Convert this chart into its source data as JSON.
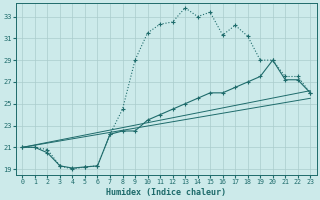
{
  "xlabel": "Humidex (Indice chaleur)",
  "xlim": [
    -0.5,
    23.5
  ],
  "ylim": [
    18.5,
    34.2
  ],
  "xticks": [
    0,
    1,
    2,
    3,
    4,
    5,
    6,
    7,
    8,
    9,
    10,
    11,
    12,
    13,
    14,
    15,
    16,
    17,
    18,
    19,
    20,
    21,
    22,
    23
  ],
  "yticks": [
    19,
    21,
    23,
    25,
    27,
    29,
    31,
    33
  ],
  "bg_color": "#cceaea",
  "line_color": "#1e6b6b",
  "grid_color": "#aacccc",
  "curve_main_x": [
    0,
    1,
    2,
    3,
    4,
    5,
    6,
    7,
    8,
    9,
    10,
    11,
    12,
    13,
    14,
    15,
    16,
    17,
    18,
    19,
    20,
    21,
    22,
    23
  ],
  "curve_main_y": [
    21.0,
    21.0,
    20.8,
    19.3,
    19.0,
    19.2,
    19.3,
    22.2,
    24.5,
    29.0,
    31.5,
    32.3,
    32.5,
    33.8,
    33.0,
    33.4,
    31.3,
    32.2,
    31.2,
    29.0,
    29.0,
    27.5,
    27.5,
    26.0
  ],
  "curve_mid_x": [
    0,
    1,
    2,
    3,
    4,
    5,
    6,
    7,
    8,
    9,
    10,
    11,
    12,
    13,
    14,
    15,
    16,
    17,
    18,
    19,
    20,
    21,
    22,
    23
  ],
  "curve_mid_y": [
    21.0,
    21.0,
    20.5,
    19.3,
    19.1,
    19.2,
    19.3,
    22.2,
    22.5,
    22.5,
    23.5,
    24.0,
    24.5,
    25.0,
    25.5,
    26.0,
    26.0,
    26.5,
    27.0,
    27.5,
    29.0,
    27.2,
    27.2,
    26.0
  ],
  "curve_line1_x": [
    0,
    23
  ],
  "curve_line1_y": [
    21.0,
    25.5
  ],
  "curve_line2_x": [
    0,
    23
  ],
  "curve_line2_y": [
    21.0,
    26.2
  ]
}
